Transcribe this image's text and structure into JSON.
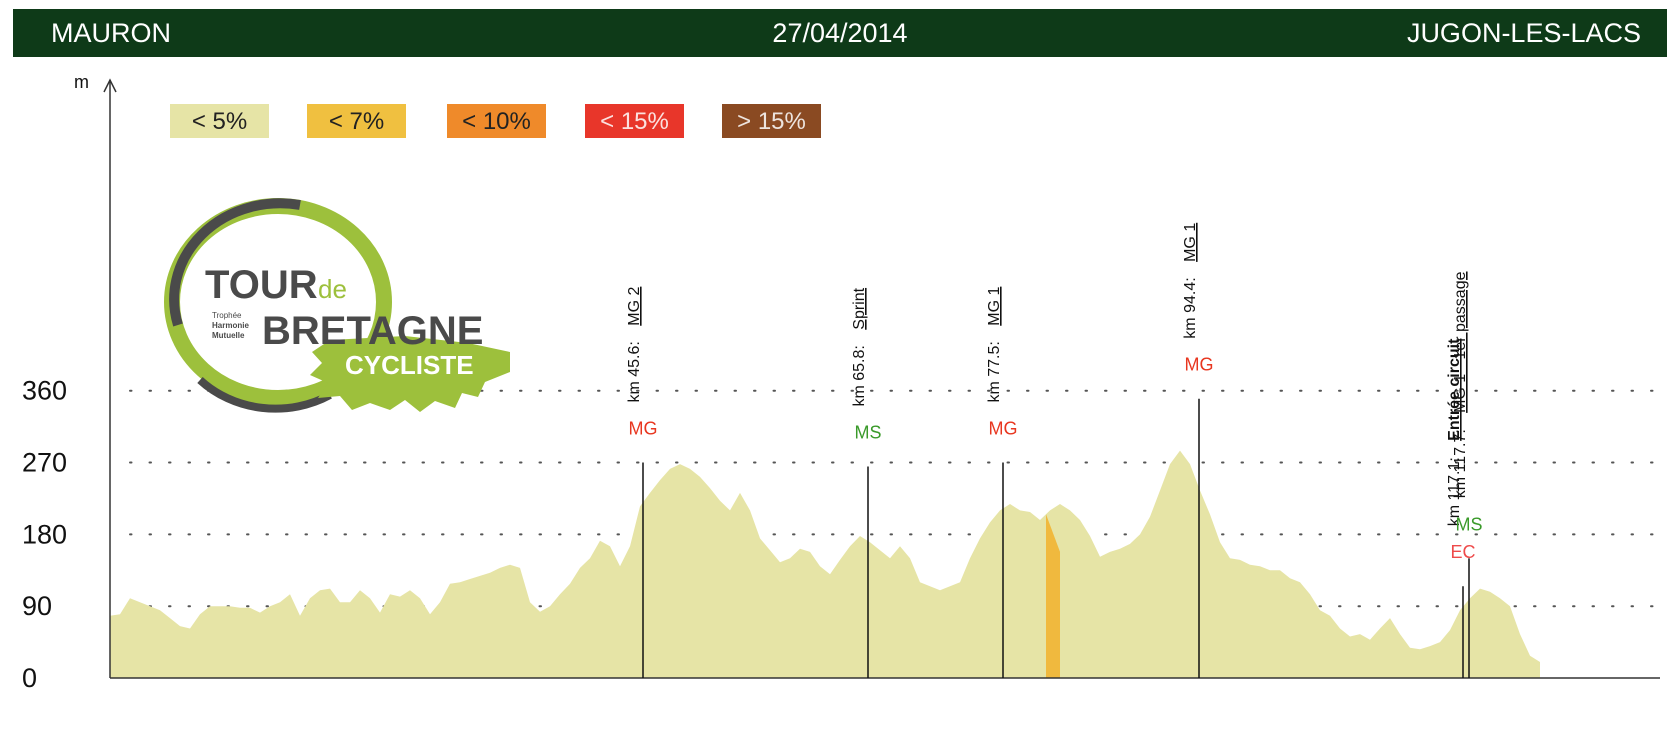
{
  "header": {
    "start": "MAURON",
    "date": "27/04/2014",
    "finish": "JUGON-LES-LACS"
  },
  "colors": {
    "header_bg": "#0e3a18",
    "profile_fill": "#e6e4a6",
    "steep_fill": "#f0b93e",
    "mg": "#e8361f",
    "ms": "#3a9a2a",
    "ec": "#ee4a4a",
    "logo_green": "#9dc03c",
    "logo_gray": "#4a4a4a"
  },
  "logo": {
    "line1": "TOUR",
    "line1_small": "de",
    "line2": "BRETAGNE",
    "line3": "CYCLISTE",
    "sponsor": [
      "Trophée",
      "Harmonie",
      "Mutuelle"
    ]
  },
  "chart_data": {
    "type": "area",
    "ylabel": "m",
    "yticks": [
      0,
      90,
      180,
      270,
      360
    ],
    "ylim": [
      0,
      360
    ],
    "xlim": [
      0,
      157
    ],
    "grid": "dotted-horizontal",
    "legend": {
      "placement": "top-left",
      "entries": [
        {
          "label": "< 5%",
          "color": "#e6e4a6"
        },
        {
          "label": "< 7%",
          "color": "#f0c040"
        },
        {
          "label": "< 10%",
          "color": "#ef8a2a"
        },
        {
          "label": "< 15%",
          "color": "#e8362a"
        },
        {
          "label": "> 15%",
          "color": "#8a4a22"
        }
      ]
    },
    "profile": [
      [
        0,
        78
      ],
      [
        1,
        80
      ],
      [
        2,
        100
      ],
      [
        3,
        95
      ],
      [
        5,
        85
      ],
      [
        6,
        75
      ],
      [
        7,
        65
      ],
      [
        8,
        62
      ],
      [
        9,
        80
      ],
      [
        10,
        90
      ],
      [
        11,
        90
      ],
      [
        12,
        90
      ],
      [
        13,
        88
      ],
      [
        14,
        88
      ],
      [
        15,
        82
      ],
      [
        16,
        90
      ],
      [
        17,
        95
      ],
      [
        18,
        105
      ],
      [
        19,
        78
      ],
      [
        20,
        100
      ],
      [
        21,
        110
      ],
      [
        22,
        112
      ],
      [
        23,
        95
      ],
      [
        24,
        95
      ],
      [
        25,
        110
      ],
      [
        26,
        100
      ],
      [
        27,
        82
      ],
      [
        28,
        105
      ],
      [
        29,
        102
      ],
      [
        30,
        110
      ],
      [
        31,
        100
      ],
      [
        32,
        80
      ],
      [
        33,
        95
      ],
      [
        34,
        118
      ],
      [
        35,
        120
      ],
      [
        36,
        124
      ],
      [
        37,
        128
      ],
      [
        38,
        132
      ],
      [
        39,
        138
      ],
      [
        40,
        142
      ],
      [
        41,
        138
      ],
      [
        42,
        95
      ],
      [
        43,
        83
      ],
      [
        44,
        90
      ],
      [
        45,
        105
      ],
      [
        46,
        118
      ],
      [
        47,
        138
      ],
      [
        48,
        150
      ],
      [
        49,
        172
      ],
      [
        50,
        165
      ],
      [
        51,
        140
      ],
      [
        52,
        165
      ],
      [
        53,
        215
      ],
      [
        54,
        232
      ],
      [
        55,
        248
      ],
      [
        56,
        262
      ],
      [
        57,
        268
      ],
      [
        58,
        262
      ],
      [
        59,
        252
      ],
      [
        60,
        238
      ],
      [
        61,
        222
      ],
      [
        62,
        210
      ],
      [
        63,
        232
      ],
      [
        64,
        210
      ],
      [
        65,
        175
      ],
      [
        66,
        160
      ],
      [
        67,
        145
      ],
      [
        68,
        150
      ],
      [
        69,
        162
      ],
      [
        70,
        158
      ],
      [
        71,
        140
      ],
      [
        72,
        130
      ],
      [
        73,
        148
      ],
      [
        74,
        165
      ],
      [
        75,
        178
      ],
      [
        76,
        170
      ],
      [
        77,
        160
      ],
      [
        78,
        150
      ],
      [
        79,
        165
      ],
      [
        80,
        150
      ],
      [
        81,
        120
      ],
      [
        82,
        115
      ],
      [
        83,
        110
      ],
      [
        84,
        115
      ],
      [
        85,
        120
      ],
      [
        86,
        150
      ],
      [
        87,
        175
      ],
      [
        88,
        195
      ],
      [
        89,
        210
      ],
      [
        90,
        218
      ],
      [
        91,
        210
      ],
      [
        92,
        208
      ],
      [
        93,
        198
      ],
      [
        94,
        210
      ],
      [
        95,
        218
      ],
      [
        96,
        210
      ],
      [
        97,
        198
      ],
      [
        98,
        178
      ],
      [
        99,
        152
      ],
      [
        100,
        158
      ],
      [
        101,
        162
      ],
      [
        102,
        168
      ],
      [
        103,
        180
      ],
      [
        104,
        202
      ],
      [
        105,
        235
      ],
      [
        106,
        268
      ],
      [
        107,
        285
      ],
      [
        108,
        268
      ],
      [
        109,
        235
      ],
      [
        110,
        205
      ],
      [
        111,
        170
      ],
      [
        112,
        150
      ],
      [
        113,
        148
      ],
      [
        114,
        142
      ],
      [
        115,
        140
      ],
      [
        116,
        135
      ],
      [
        117,
        135
      ],
      [
        118,
        125
      ],
      [
        119,
        120
      ],
      [
        120,
        105
      ],
      [
        121,
        85
      ],
      [
        122,
        78
      ],
      [
        123,
        62
      ],
      [
        124,
        52
      ],
      [
        125,
        55
      ],
      [
        126,
        48
      ],
      [
        127,
        62
      ],
      [
        128,
        75
      ],
      [
        129,
        55
      ],
      [
        130,
        38
      ],
      [
        131,
        36
      ],
      [
        132,
        40
      ],
      [
        133,
        45
      ],
      [
        134,
        60
      ],
      [
        135,
        85
      ],
      [
        136,
        100
      ],
      [
        137,
        112
      ],
      [
        138,
        108
      ],
      [
        139,
        100
      ],
      [
        140,
        90
      ],
      [
        141,
        55
      ],
      [
        142,
        28
      ],
      [
        143,
        20
      ]
    ],
    "steep_segments": [
      {
        "from_km": 93.6,
        "to_km": 95.0,
        "color": "#f0b93e"
      }
    ],
    "markers": [
      {
        "x": 53.3,
        "top": 270,
        "km": "km 45.6:",
        "name": "MG 2",
        "cat": "MG",
        "cat_type": "mg",
        "bold": false
      },
      {
        "x": 75.8,
        "top": 265,
        "km": "km 65.8:",
        "name": "Sprint",
        "cat": "MS",
        "cat_type": "ms",
        "bold": false
      },
      {
        "x": 89.3,
        "top": 270,
        "km": "km 77.5:",
        "name": "MG 1",
        "cat": "MG",
        "cat_type": "mg",
        "bold": false
      },
      {
        "x": 108.9,
        "top": 350,
        "km": "km 94.4:",
        "name": "MG 1",
        "cat": "MG",
        "cat_type": "mg",
        "bold": false
      },
      {
        "x": 135.3,
        "top": 115,
        "km": "km 117.1:",
        "name": "Entrée circuit",
        "cat": "EC",
        "cat_type": "ec",
        "bold": true
      },
      {
        "x": 135.9,
        "top": 150,
        "km": "km 117.7:",
        "name": "MG 1 - 1er passage",
        "cat": "MS",
        "cat_type": "ms",
        "bold": false
      }
    ]
  }
}
